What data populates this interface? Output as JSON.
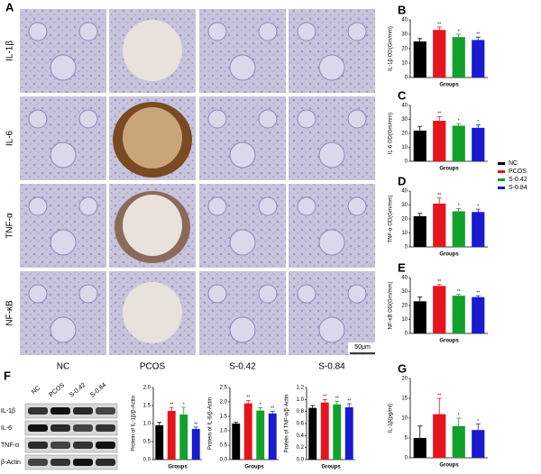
{
  "figure": {
    "panel_a": "A",
    "row_labels": [
      "IL-1β",
      "IL-6",
      "TNF-α",
      "NF-κB"
    ],
    "column_labels": [
      "NC",
      "PCOS",
      "S-0.42",
      "S-0.84"
    ],
    "scale_bar": "50μm",
    "legend": [
      {
        "name": "NC",
        "color": "#000000"
      },
      {
        "name": "PCOS",
        "color": "#e8141b"
      },
      {
        "name": "S-0.42",
        "color": "#12a12a"
      },
      {
        "name": "S-0.84",
        "color": "#1a1ad0"
      }
    ],
    "blot": {
      "panel": "F",
      "lanes": [
        "NC",
        "PCOS",
        "S-0.42",
        "S-0.84"
      ],
      "rows": [
        "IL-1β",
        "IL-6",
        "TNF-α",
        "β-Actin"
      ]
    }
  },
  "chart_data": [
    {
      "type": "bar",
      "panel": "B",
      "ylabel": "IL-1β OD(Gm/mm)",
      "xlabel": "Groups",
      "values": [
        25,
        33,
        28,
        26
      ],
      "errors": [
        2,
        2,
        2,
        2
      ],
      "significance": [
        null,
        "**",
        "*",
        "**"
      ],
      "colors": [
        "#000000",
        "#e8141b",
        "#12a12a",
        "#1a1ad0"
      ],
      "ylim": [
        0,
        40
      ],
      "yticks": [
        0,
        10,
        20,
        30,
        40
      ]
    },
    {
      "type": "bar",
      "panel": "C",
      "ylabel": "IL-6 OD(Gm/mm)",
      "xlabel": "Groups",
      "values": [
        22,
        29,
        25.5,
        24
      ],
      "errors": [
        3,
        3,
        1.5,
        2
      ],
      "significance": [
        null,
        "**",
        "*",
        "*"
      ],
      "colors": [
        "#000000",
        "#e8141b",
        "#12a12a",
        "#1a1ad0"
      ],
      "ylim": [
        0,
        40
      ],
      "yticks": [
        0,
        10,
        20,
        30,
        40
      ]
    },
    {
      "type": "bar",
      "panel": "D",
      "ylabel": "TNF-α OD(Gm/mm)",
      "xlabel": "Groups",
      "values": [
        22,
        31,
        25.5,
        25
      ],
      "errors": [
        2,
        4,
        2,
        2
      ],
      "significance": [
        null,
        "**",
        "*",
        "*"
      ],
      "colors": [
        "#000000",
        "#e8141b",
        "#12a12a",
        "#1a1ad0"
      ],
      "ylim": [
        0,
        40
      ],
      "yticks": [
        0,
        10,
        20,
        30,
        40
      ]
    },
    {
      "type": "bar",
      "panel": "E",
      "ylabel": "NF-κB OD(Gm/mm)",
      "xlabel": "Groups",
      "values": [
        23,
        34,
        27,
        26
      ],
      "errors": [
        3,
        1,
        1,
        1
      ],
      "significance": [
        null,
        "**",
        "**",
        "**"
      ],
      "colors": [
        "#000000",
        "#e8141b",
        "#12a12a",
        "#1a1ad0"
      ],
      "ylim": [
        0,
        40
      ],
      "yticks": [
        0,
        10,
        20,
        30,
        40
      ]
    },
    {
      "type": "bar",
      "ylabel": "Protein of IL-1β/β-Actin",
      "xlabel": "Groups",
      "values": [
        0.95,
        1.35,
        1.25,
        0.85
      ],
      "errors": [
        0.08,
        0.1,
        0.2,
        0.05
      ],
      "significance": [
        null,
        "**",
        "*",
        "**"
      ],
      "colors": [
        "#000000",
        "#e8141b",
        "#12a12a",
        "#1a1ad0"
      ],
      "ylim": [
        0,
        2
      ],
      "yticks": [
        {
          "value": 0,
          "label": "0.0"
        },
        0.5,
        {
          "value": 1,
          "label": "1.0"
        },
        1.5,
        {
          "value": 2,
          "label": "2.0"
        }
      ]
    },
    {
      "type": "bar",
      "ylabel": "Protein of IL-6/β-Actin",
      "xlabel": "Groups",
      "values": [
        1.25,
        1.95,
        1.7,
        1.6
      ],
      "errors": [
        0.05,
        0.1,
        0.1,
        0.08
      ],
      "significance": [
        null,
        "**",
        "*",
        "**"
      ],
      "colors": [
        "#000000",
        "#e8141b",
        "#12a12a",
        "#1a1ad0"
      ],
      "ylim": [
        0,
        2.5
      ],
      "yticks": [
        {
          "value": 0,
          "label": "0.0"
        },
        0.5,
        {
          "value": 1,
          "label": "1.0"
        },
        1.5,
        {
          "value": 2,
          "label": "2.0"
        },
        2.5
      ]
    },
    {
      "type": "bar",
      "ylabel": "Protein of TNF-α/β-Actin",
      "xlabel": "Groups",
      "values": [
        0.86,
        0.95,
        0.92,
        0.87
      ],
      "errors": [
        0.04,
        0.05,
        0.05,
        0.06
      ],
      "significance": [
        null,
        "**",
        "**",
        "**"
      ],
      "colors": [
        "#000000",
        "#e8141b",
        "#12a12a",
        "#1a1ad0"
      ],
      "ylim": [
        0,
        1.2
      ],
      "yticks": [
        {
          "value": 0,
          "label": "0.0"
        },
        0.2,
        0.4,
        0.6,
        0.8,
        {
          "value": 1,
          "label": "1.0"
        },
        1.2
      ]
    },
    {
      "type": "bar",
      "panel": "G",
      "ylabel": "IL-1β(pg/ml)",
      "xlabel": "Groups",
      "values": [
        5,
        11,
        8,
        7
      ],
      "errors": [
        3,
        4,
        2,
        1.5
      ],
      "significance": [
        null,
        "**",
        "*",
        "*"
      ],
      "colors": [
        "#000000",
        "#e8141b",
        "#12a12a",
        "#1a1ad0"
      ],
      "ylim": [
        0,
        20
      ],
      "yticks": [
        0,
        5,
        10,
        15,
        20
      ]
    }
  ]
}
